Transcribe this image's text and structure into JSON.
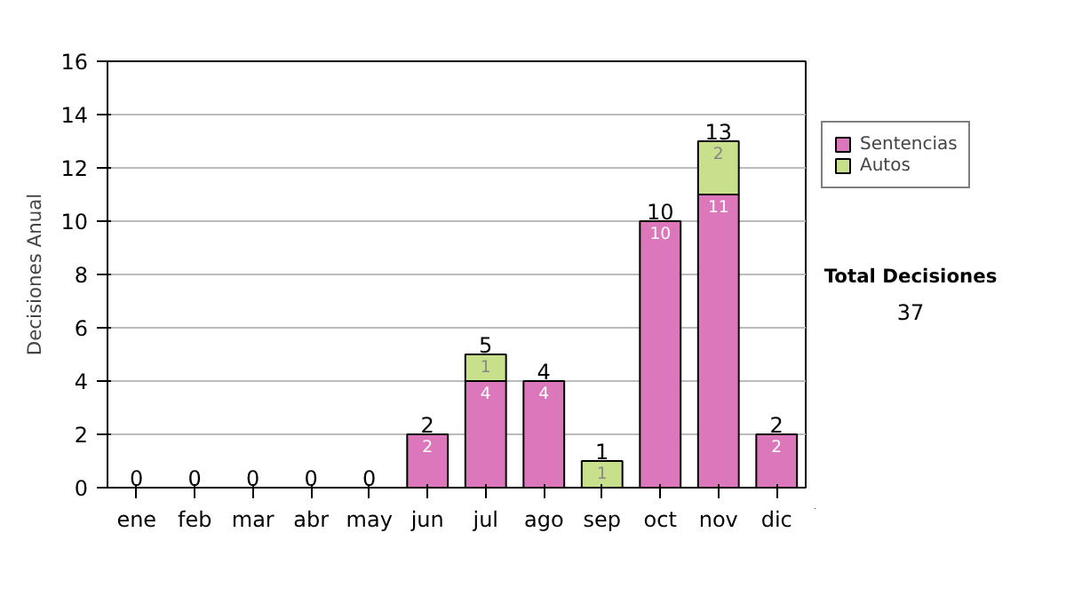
{
  "chart_data": {
    "type": "bar",
    "stacked": true,
    "ylabel": "Decisiones Anual",
    "categories": [
      "ene",
      "feb",
      "mar",
      "abr",
      "may",
      "jun",
      "jul",
      "ago",
      "sep",
      "oct",
      "nov",
      "dic"
    ],
    "series": [
      {
        "name": "Sentencias",
        "color": "#dd77bb",
        "values": [
          0,
          0,
          0,
          0,
          0,
          2,
          4,
          4,
          0,
          10,
          11,
          2
        ],
        "value_labels": [
          null,
          null,
          null,
          null,
          null,
          "2",
          "4",
          "4",
          null,
          "10",
          "11",
          "2"
        ]
      },
      {
        "name": "Autos",
        "color": "#c8e08c",
        "values": [
          0,
          0,
          0,
          0,
          0,
          0,
          1,
          0,
          1,
          0,
          2,
          0
        ],
        "value_labels": [
          null,
          null,
          null,
          null,
          null,
          null,
          "1",
          null,
          "1",
          null,
          "2",
          null
        ]
      }
    ],
    "totals": [
      "0",
      "0",
      "0",
      "0",
      "0",
      "2",
      "5",
      "4",
      "1",
      "10",
      "13",
      "2"
    ],
    "ylim": [
      0,
      16
    ],
    "yticks": [
      0,
      2,
      4,
      6,
      8,
      10,
      12,
      14,
      16
    ],
    "grid": "y",
    "legend": "right",
    "annotations": [
      "Total Decisiones",
      "37"
    ]
  }
}
